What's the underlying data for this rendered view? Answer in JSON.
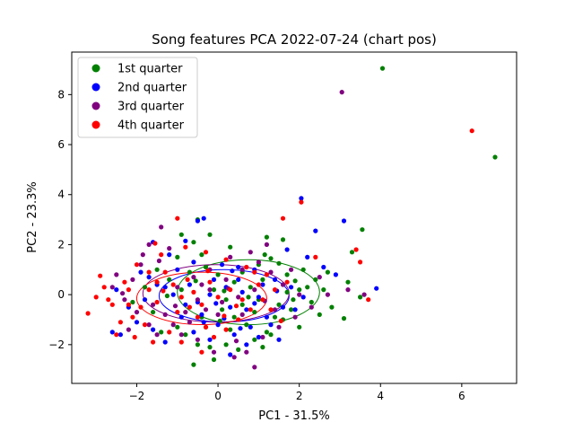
{
  "chart_data": {
    "type": "scatter",
    "title": "Song features PCA 2022-07-24 (chart pos)",
    "xlabel": "PC1 - 31.5%",
    "ylabel": "PC2 - 23.3%",
    "xlim": [
      -3.6,
      7.35
    ],
    "ylim": [
      -3.55,
      9.7
    ],
    "xticks": [
      -2,
      0,
      2,
      4,
      6
    ],
    "yticks": [
      -2,
      0,
      2,
      4,
      6,
      8
    ],
    "grid": false,
    "legend_position": "top-left",
    "series": [
      {
        "name": "1st quarter",
        "color": "#008000",
        "points": [
          [
            4.05,
            9.05
          ],
          [
            6.82,
            5.5
          ],
          [
            1.3,
            1.45
          ],
          [
            1.5,
            1.25
          ],
          [
            1.15,
            1.6
          ],
          [
            1.7,
            0.8
          ],
          [
            1.9,
            0.55
          ],
          [
            2.1,
            1.0
          ],
          [
            2.2,
            0.3
          ],
          [
            2.4,
            0.6
          ],
          [
            2.6,
            0.2
          ],
          [
            2.3,
            -0.3
          ],
          [
            1.8,
            -0.6
          ],
          [
            1.6,
            -1.0
          ],
          [
            2.0,
            -1.3
          ],
          [
            1.2,
            -1.5
          ],
          [
            0.9,
            -1.8
          ],
          [
            1.1,
            -2.1
          ],
          [
            0.5,
            -2.2
          ],
          [
            0.2,
            -2.0
          ],
          [
            -0.2,
            -2.1
          ],
          [
            -0.5,
            -2.0
          ],
          [
            -0.8,
            -1.6
          ],
          [
            -1.0,
            -1.3
          ],
          [
            -0.4,
            -0.9
          ],
          [
            0.1,
            -0.6
          ],
          [
            0.6,
            -0.4
          ],
          [
            1.0,
            -0.2
          ],
          [
            0.8,
            0.3
          ],
          [
            0.4,
            0.5
          ],
          [
            0.0,
            0.8
          ],
          [
            -0.3,
            1.1
          ],
          [
            -0.7,
            0.9
          ],
          [
            -1.2,
            0.6
          ],
          [
            -1.5,
            1.0
          ],
          [
            -1.0,
            1.5
          ],
          [
            -0.4,
            1.6
          ],
          [
            -0.6,
            2.1
          ],
          [
            -0.2,
            2.4
          ],
          [
            0.3,
            1.9
          ],
          [
            1.6,
            2.2
          ],
          [
            1.2,
            2.3
          ],
          [
            -0.5,
            3.0
          ],
          [
            -0.9,
            2.4
          ],
          [
            3.55,
            2.6
          ],
          [
            3.3,
            1.7
          ],
          [
            3.2,
            0.5
          ],
          [
            3.5,
            -0.1
          ],
          [
            3.1,
            -0.95
          ],
          [
            2.8,
            -0.5
          ],
          [
            2.5,
            -0.8
          ],
          [
            1.4,
            -0.9
          ],
          [
            0.7,
            -1.2
          ],
          [
            0.3,
            -1.4
          ],
          [
            -0.6,
            -2.8
          ],
          [
            -0.1,
            -2.6
          ],
          [
            1.3,
            -1.6
          ],
          [
            0.9,
            -0.7
          ],
          [
            -0.1,
            0.2
          ],
          [
            0.2,
            -0.2
          ],
          [
            -1.8,
            0.3
          ],
          [
            -2.1,
            -0.3
          ],
          [
            -1.6,
            -0.7
          ],
          [
            -1.4,
            -1.5
          ],
          [
            0.15,
            0.15
          ],
          [
            0.6,
            0.9
          ],
          [
            1.0,
            1.2
          ],
          [
            -0.9,
            0.2
          ],
          [
            1.7,
            0.1
          ],
          [
            2.0,
            0.2
          ],
          [
            0.4,
            -0.9
          ],
          [
            -0.3,
            -1.3
          ],
          [
            1.1,
            0.6
          ],
          [
            1.5,
            -0.4
          ],
          [
            2.7,
            0.9
          ],
          [
            -1.25,
            -0.05
          ],
          [
            0.75,
            -0.1
          ],
          [
            0.05,
            -1.05
          ],
          [
            1.85,
            -0.2
          ],
          [
            -0.55,
            0.55
          ]
        ]
      },
      {
        "name": "2nd quarter",
        "color": "#0000ff",
        "points": [
          [
            2.05,
            3.85
          ],
          [
            3.1,
            2.95
          ],
          [
            2.4,
            2.55
          ],
          [
            3.9,
            0.25
          ],
          [
            -0.35,
            3.05
          ],
          [
            -0.5,
            2.95
          ],
          [
            -0.8,
            2.15
          ],
          [
            -1.6,
            2.1
          ],
          [
            -1.2,
            1.6
          ],
          [
            -0.6,
            1.3
          ],
          [
            0.1,
            1.2
          ],
          [
            0.5,
            1.1
          ],
          [
            0.9,
            1.0
          ],
          [
            1.4,
            0.6
          ],
          [
            1.8,
            0.3
          ],
          [
            2.2,
            1.5
          ],
          [
            2.6,
            1.1
          ],
          [
            2.9,
            0.8
          ],
          [
            1.6,
            -0.5
          ],
          [
            1.2,
            -0.9
          ],
          [
            0.8,
            -1.3
          ],
          [
            0.4,
            -1.6
          ],
          [
            0.0,
            -1.2
          ],
          [
            -0.4,
            -0.8
          ],
          [
            -0.8,
            -0.4
          ],
          [
            -1.1,
            0.0
          ],
          [
            -1.5,
            0.4
          ],
          [
            -1.9,
            0.9
          ],
          [
            -2.2,
            -0.5
          ],
          [
            -2.0,
            -1.1
          ],
          [
            -1.6,
            -1.4
          ],
          [
            -2.4,
            -1.6
          ],
          [
            -2.6,
            -1.5
          ],
          [
            -1.3,
            -1.9
          ],
          [
            -0.6,
            -1.5
          ],
          [
            -0.2,
            -1.8
          ],
          [
            0.3,
            -2.4
          ],
          [
            0.7,
            -2.0
          ],
          [
            1.0,
            -1.7
          ],
          [
            1.5,
            -1.8
          ],
          [
            0.2,
            0.3
          ],
          [
            0.6,
            0.1
          ],
          [
            1.0,
            -0.1
          ],
          [
            -0.2,
            0.0
          ],
          [
            -0.5,
            -0.3
          ],
          [
            0.3,
            -0.5
          ],
          [
            0.7,
            -0.6
          ],
          [
            -0.9,
            -0.9
          ],
          [
            1.9,
            -0.6
          ],
          [
            2.1,
            -0.1
          ],
          [
            -1.7,
            0.7
          ],
          [
            -1.3,
            0.3
          ],
          [
            1.1,
            0.4
          ],
          [
            0.5,
            0.6
          ],
          [
            -0.1,
            0.6
          ],
          [
            -0.7,
            0.4
          ],
          [
            1.7,
            1.8
          ],
          [
            -1.0,
            1.0
          ],
          [
            0.9,
            -0.35
          ],
          [
            -0.35,
            -1.1
          ],
          [
            0.15,
            -0.95
          ],
          [
            1.3,
            -1.2
          ],
          [
            -1.8,
            -0.2
          ],
          [
            -2.5,
            0.2
          ],
          [
            0.55,
            -1.35
          ],
          [
            1.45,
            0.15
          ],
          [
            -0.05,
            -0.35
          ],
          [
            0.35,
            0.95
          ]
        ]
      },
      {
        "name": "3rd quarter",
        "color": "#800080",
        "points": [
          [
            3.05,
            8.1
          ],
          [
            -1.2,
            1.85
          ],
          [
            -1.9,
            1.2
          ],
          [
            -2.1,
            0.6
          ],
          [
            -2.5,
            0.8
          ],
          [
            -2.6,
            0.3
          ],
          [
            -2.3,
            -0.2
          ],
          [
            -2.0,
            -0.7
          ],
          [
            -1.7,
            -1.2
          ],
          [
            -1.5,
            -1.6
          ],
          [
            -1.1,
            -1.2
          ],
          [
            -0.8,
            -0.7
          ],
          [
            -0.5,
            -0.2
          ],
          [
            -0.2,
            0.2
          ],
          [
            0.2,
            0.6
          ],
          [
            0.6,
            1.0
          ],
          [
            1.0,
            1.3
          ],
          [
            1.3,
            0.9
          ],
          [
            1.6,
            0.4
          ],
          [
            2.0,
            0.0
          ],
          [
            2.3,
            -0.5
          ],
          [
            1.9,
            -0.9
          ],
          [
            1.5,
            -1.3
          ],
          [
            1.1,
            -1.7
          ],
          [
            0.7,
            -2.3
          ],
          [
            0.4,
            -2.5
          ],
          [
            0.9,
            -2.9
          ],
          [
            -0.1,
            -2.3
          ],
          [
            -0.5,
            -1.8
          ],
          [
            -0.9,
            -1.6
          ],
          [
            -1.3,
            -0.8
          ],
          [
            -1.6,
            -0.4
          ],
          [
            -1.0,
            0.3
          ],
          [
            -0.6,
            0.7
          ],
          [
            -0.2,
            1.0
          ],
          [
            0.3,
            1.5
          ],
          [
            0.8,
            1.7
          ],
          [
            1.2,
            2.0
          ],
          [
            -1.4,
            2.7
          ],
          [
            -1.7,
            2.0
          ],
          [
            2.5,
            0.7
          ],
          [
            2.7,
            0.0
          ],
          [
            3.6,
            0.0
          ],
          [
            3.2,
            0.2
          ],
          [
            -0.3,
            -0.6
          ],
          [
            0.1,
            -0.3
          ],
          [
            0.5,
            -0.1
          ],
          [
            0.9,
            0.2
          ],
          [
            -0.7,
            -1.1
          ],
          [
            1.4,
            -0.6
          ],
          [
            -2.2,
            -1.4
          ],
          [
            -1.85,
            1.6
          ],
          [
            0.0,
            -0.8
          ],
          [
            0.6,
            -0.8
          ],
          [
            -0.4,
            0.4
          ],
          [
            1.8,
            1.0
          ],
          [
            -1.05,
            -0.45
          ],
          [
            0.25,
            0.25
          ],
          [
            1.15,
            -0.25
          ],
          [
            -2.35,
            0.05
          ],
          [
            0.45,
            -1.85
          ],
          [
            -1.45,
            1.35
          ]
        ]
      },
      {
        "name": "4th quarter",
        "color": "#ff0000",
        "points": [
          [
            6.25,
            6.55
          ],
          [
            2.05,
            3.7
          ],
          [
            1.6,
            3.05
          ],
          [
            -1.0,
            3.05
          ],
          [
            -3.2,
            -0.75
          ],
          [
            -3.0,
            -0.1
          ],
          [
            -2.8,
            0.3
          ],
          [
            -2.9,
            0.75
          ],
          [
            -2.6,
            -0.4
          ],
          [
            -2.4,
            -1.1
          ],
          [
            -2.5,
            -1.6
          ],
          [
            -2.1,
            -0.9
          ],
          [
            -1.9,
            -0.5
          ],
          [
            -1.7,
            0.2
          ],
          [
            -1.5,
            0.5
          ],
          [
            -1.3,
            0.9
          ],
          [
            -1.1,
            0.4
          ],
          [
            -0.9,
            -0.1
          ],
          [
            -0.7,
            -0.5
          ],
          [
            -0.5,
            -0.9
          ],
          [
            -0.3,
            -1.3
          ],
          [
            -0.1,
            -1.7
          ],
          [
            0.2,
            -1.4
          ],
          [
            0.5,
            -1.0
          ],
          [
            0.8,
            -0.6
          ],
          [
            1.1,
            -0.2
          ],
          [
            1.4,
            0.2
          ],
          [
            1.7,
            0.5
          ],
          [
            1.2,
            0.8
          ],
          [
            0.7,
            1.1
          ],
          [
            0.2,
            1.4
          ],
          [
            -0.3,
            1.7
          ],
          [
            -0.8,
            1.9
          ],
          [
            -1.4,
            1.6
          ],
          [
            -2.0,
            1.2
          ],
          [
            -2.3,
            0.5
          ],
          [
            -1.6,
            -1.9
          ],
          [
            -0.9,
            -1.9
          ],
          [
            -0.4,
            -2.3
          ],
          [
            -1.2,
            -1.5
          ],
          [
            -1.8,
            -1.2
          ],
          [
            -2.2,
            0.2
          ],
          [
            -1.5,
            -0.3
          ],
          [
            -1.0,
            -0.7
          ],
          [
            -0.6,
            0.1
          ],
          [
            -0.2,
            0.5
          ],
          [
            0.3,
            0.2
          ],
          [
            0.6,
            -0.2
          ],
          [
            1.0,
            0.4
          ],
          [
            1.3,
            -0.6
          ],
          [
            2.4,
            1.5
          ],
          [
            3.4,
            1.8
          ],
          [
            3.7,
            -0.2
          ],
          [
            3.5,
            1.3
          ],
          [
            -1.7,
            0.9
          ],
          [
            -0.4,
            -0.4
          ],
          [
            0.0,
            -0.1
          ],
          [
            -2.7,
            -0.2
          ],
          [
            -2.2,
            -0.4
          ],
          [
            0.9,
            0.9
          ],
          [
            -1.35,
            0.15
          ],
          [
            -0.75,
            0.6
          ],
          [
            0.45,
            -0.45
          ],
          [
            -2.05,
            -1.7
          ],
          [
            0.15,
            -0.85
          ],
          [
            1.55,
            -1.05
          ],
          [
            -0.25,
            0.95
          ],
          [
            -1.55,
            2.05
          ]
        ]
      }
    ],
    "ellipses": [
      {
        "series": "1st quarter",
        "center": [
          0.75,
          0.1
        ],
        "rx": 1.75,
        "ry": 1.3
      },
      {
        "series": "2nd quarter",
        "center": [
          0.15,
          -0.05
        ],
        "rx": 1.6,
        "ry": 1.05
      },
      {
        "series": "3rd quarter",
        "center": [
          -0.05,
          0.05
        ],
        "rx": 1.8,
        "ry": 1.15
      },
      {
        "series": "4th quarter",
        "center": [
          -0.4,
          -0.15
        ],
        "rx": 1.6,
        "ry": 1.05
      }
    ]
  }
}
